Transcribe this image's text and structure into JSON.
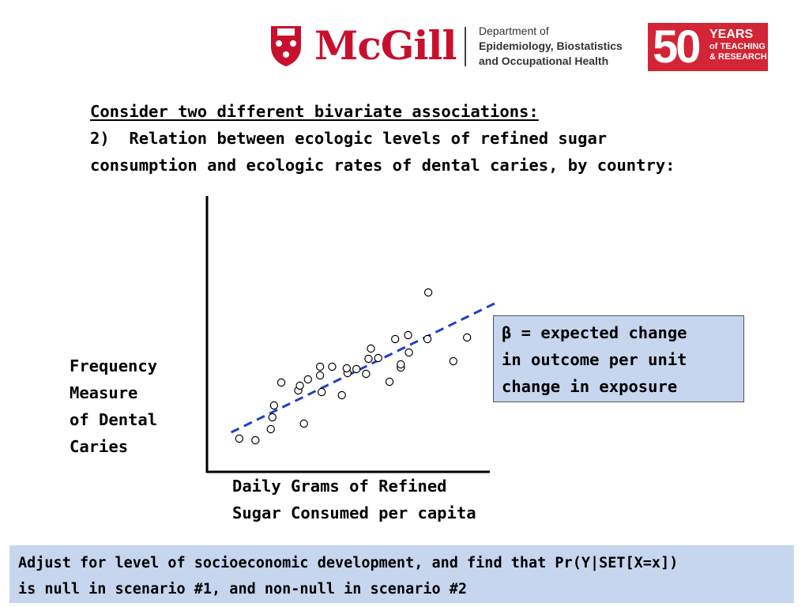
{
  "header": {
    "university": "McGill",
    "department_lines": [
      "Department of",
      "Epidemiology, Biostatistics",
      "and Occupational Health"
    ],
    "badge_number": "50",
    "badge_lines": [
      "YEARS",
      "of TEACHING",
      "& RESEARCH"
    ],
    "brand_color": "#c8102e"
  },
  "headline": {
    "line1": "Consider two different bivariate associations:",
    "line2": "2)  Relation between ecologic levels of refined sugar",
    "line3": "consumption and ecologic rates of dental caries, by country:"
  },
  "beta_box": {
    "symbol": "β",
    "line1": " = expected change",
    "line2": "in outcome per unit",
    "line3": "change in exposure"
  },
  "footer": {
    "line1": "Adjust for level of socioeconomic development, and find that Pr(Y|SET[X=x])",
    "line2": "is null in scenario #1, and non-null in scenario #2"
  },
  "chart_data": {
    "type": "scatter",
    "title": "",
    "xlabel_lines": [
      "Daily Grams of Refined",
      "Sugar Consumed per capita"
    ],
    "ylabel_lines": [
      "Frequency",
      "Measure",
      "of Dental",
      "Caries"
    ],
    "xlim": [
      0,
      36
    ],
    "ylim": [
      0,
      35
    ],
    "ticks": "none",
    "point_color": "#000000",
    "points": [
      [
        4.0,
        4.2
      ],
      [
        6.0,
        4.0
      ],
      [
        7.9,
        5.4
      ],
      [
        8.1,
        6.9
      ],
      [
        8.3,
        8.4
      ],
      [
        9.2,
        11.3
      ],
      [
        11.3,
        10.3
      ],
      [
        11.5,
        10.9
      ],
      [
        12.0,
        6.1
      ],
      [
        12.5,
        11.7
      ],
      [
        14.0,
        12.2
      ],
      [
        14.2,
        10.1
      ],
      [
        14.0,
        13.3
      ],
      [
        15.5,
        13.3
      ],
      [
        16.7,
        9.7
      ],
      [
        17.4,
        12.5
      ],
      [
        17.3,
        13.1
      ],
      [
        18.5,
        13.0
      ],
      [
        19.7,
        12.4
      ],
      [
        20.0,
        14.3
      ],
      [
        20.3,
        15.6
      ],
      [
        21.2,
        14.4
      ],
      [
        22.6,
        11.4
      ],
      [
        23.3,
        16.8
      ],
      [
        24.0,
        13.2
      ],
      [
        24.0,
        13.6
      ],
      [
        25.0,
        15.1
      ],
      [
        24.9,
        17.3
      ],
      [
        27.3,
        16.8
      ],
      [
        30.5,
        14.0
      ],
      [
        32.2,
        17.0
      ],
      [
        27.4,
        22.7
      ]
    ],
    "trend_line": {
      "x": [
        3.0,
        36.0
      ],
      "y": [
        5.0,
        21.5
      ],
      "style": "dashed",
      "color": "#1f3fcc"
    }
  }
}
